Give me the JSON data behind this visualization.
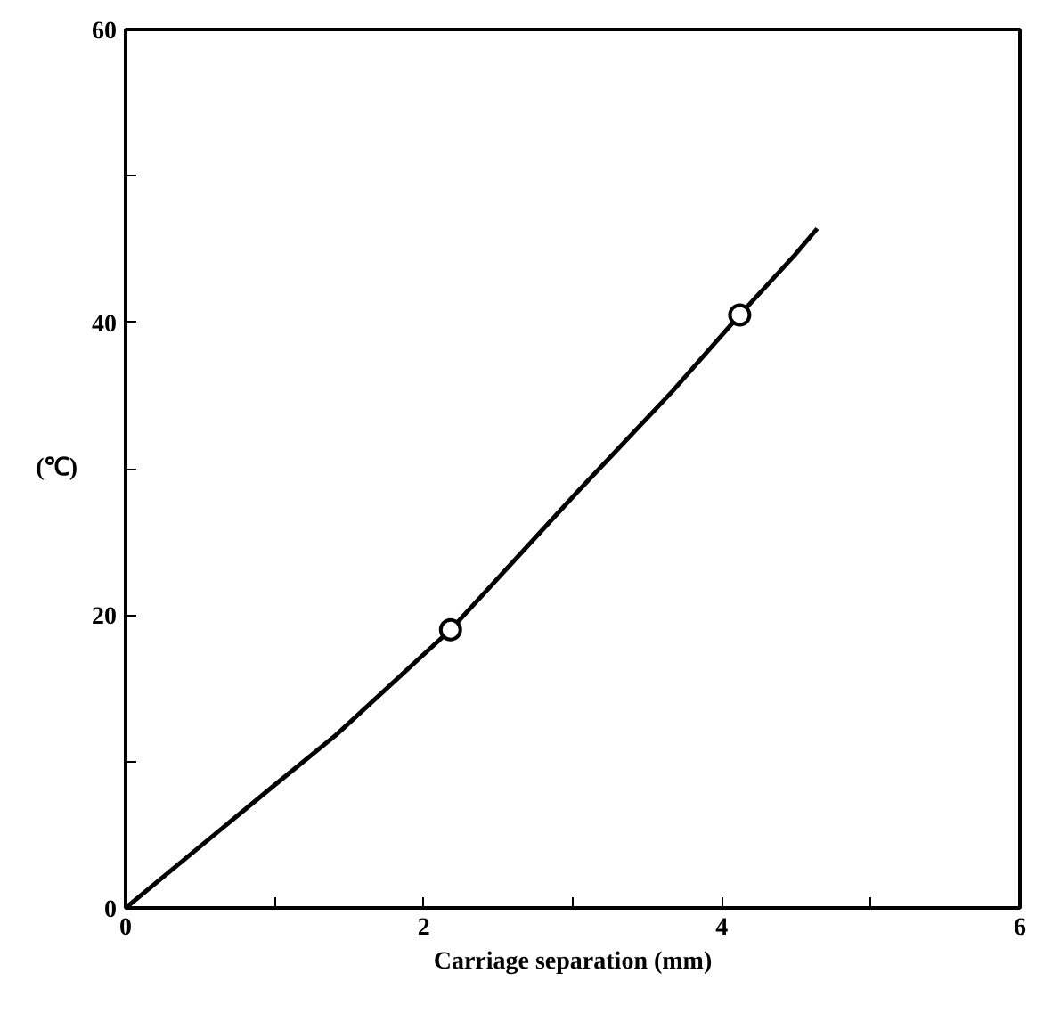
{
  "chart_data": {
    "type": "line",
    "xlabel": "Carriage separation (mm)",
    "ylabel": "(℃)",
    "xlim": [
      0,
      6
    ],
    "ylim": [
      0,
      60
    ],
    "xticks": [
      0,
      {
        "value": 1,
        "label": null
      },
      2,
      {
        "value": 3,
        "label": null
      },
      4,
      {
        "value": 5,
        "label": null
      },
      6
    ],
    "yticks": [
      0,
      {
        "value": 10,
        "label": null
      },
      20,
      {
        "value": 30,
        "label": null
      },
      40,
      {
        "value": 50,
        "label": null
      },
      60
    ],
    "grid": false,
    "series": [
      {
        "color": "#000000",
        "marker": "none",
        "x": [
          0,
          1.0,
          1.41,
          2.18,
          3.02,
          3.67,
          4.12,
          4.49,
          4.64
        ],
        "values": [
          0,
          8.4,
          11.8,
          19.0,
          28.3,
          35.3,
          40.5,
          44.6,
          46.4
        ]
      },
      {
        "type": "scatter",
        "color": "#000000",
        "marker": "circle",
        "x": [
          2.18,
          4.12
        ],
        "values": [
          19.0,
          40.5
        ]
      }
    ]
  }
}
